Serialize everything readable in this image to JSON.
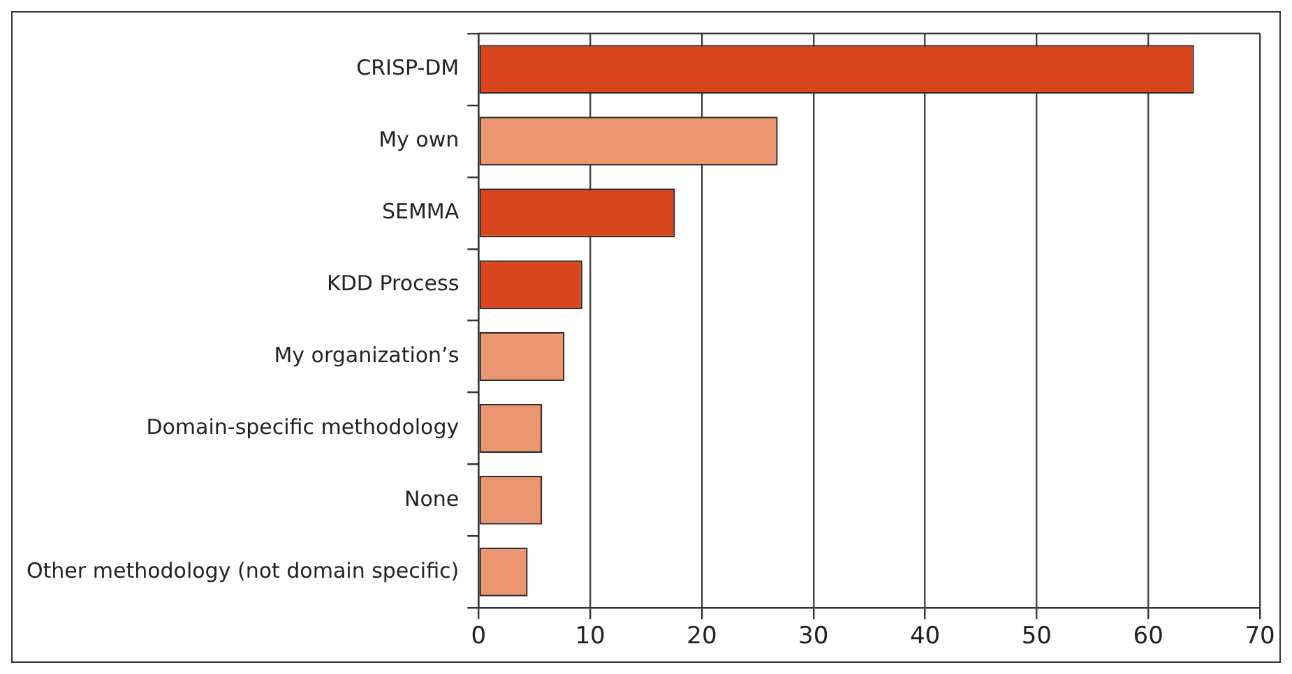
{
  "chart_data": {
    "type": "bar",
    "orientation": "horizontal",
    "categories": [
      "CRISP-DM",
      "My own",
      "SEMMA",
      "KDD Process",
      "My organization’s",
      "Domain-specific methodology",
      "None",
      "Other methodology (not domain specific)"
    ],
    "values": [
      64.1,
      26.8,
      17.6,
      9.3,
      7.7,
      5.7,
      5.7,
      4.4
    ],
    "colors": [
      "#d9461e",
      "#eb9670",
      "#d9461e",
      "#d9461e",
      "#eb9670",
      "#eb9670",
      "#eb9670",
      "#eb9670"
    ],
    "xlim": [
      0,
      70
    ],
    "xticks": [
      0,
      10,
      20,
      30,
      40,
      50,
      60,
      70
    ],
    "grid": "x"
  }
}
